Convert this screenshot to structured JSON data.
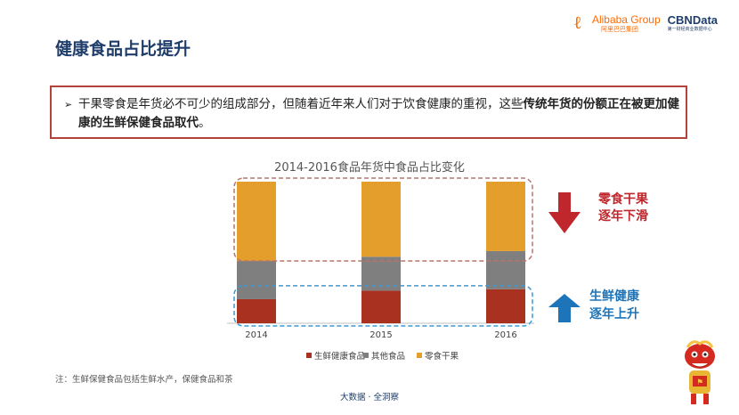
{
  "header": {
    "title": "健康食品占比提升",
    "alibaba_name": "Alibaba Group",
    "alibaba_cn": "阿里巴巴集团",
    "cbn_name": "CBNData",
    "cbn_sub": "第一财经商业数据中心"
  },
  "callout": {
    "part1": "干果零食是年货必不可少的组成部分，但随着近年来人们对于饮食健康的重视，这些",
    "highlight": "传统年货的份额正在被更加健康的生鲜保健食品取代",
    "part2": "。"
  },
  "annotations": {
    "down": {
      "line1": "零食干果",
      "line2": "逐年下滑",
      "color": "#c0272d"
    },
    "up": {
      "line1": "生鲜健康",
      "line2": "逐年上升",
      "color": "#1e74b8"
    }
  },
  "note": "注：生鲜保健食品包括生鲜水产，保健食品和茶",
  "footer": "大数据 · 全洞察",
  "chart_data": {
    "type": "bar",
    "stacked": true,
    "title": "2014-2016食品年货中食品占比变化",
    "categories": [
      "2014",
      "2015",
      "2016"
    ],
    "series": [
      {
        "name": "生鲜健康食品",
        "values": [
          17,
          23,
          24
        ],
        "color": "#a8321f"
      },
      {
        "name": "其他食品",
        "values": [
          27,
          24,
          27
        ],
        "color": "#7f7f7f"
      },
      {
        "name": "零食干果",
        "values": [
          56,
          53,
          49
        ],
        "color": "#e39e2c"
      }
    ],
    "ylim": [
      0,
      100
    ],
    "grid": false,
    "legend": "bottom"
  }
}
